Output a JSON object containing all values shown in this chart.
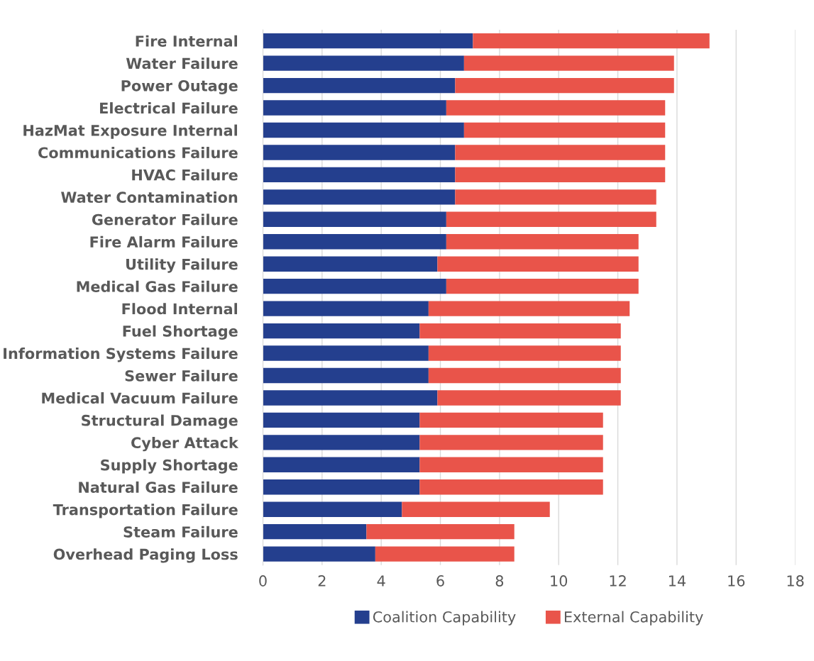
{
  "chart_data": {
    "type": "bar",
    "orientation": "horizontal",
    "stacked": true,
    "categories": [
      "Fire Internal",
      "Water Failure",
      "Power Outage",
      "Electrical Failure",
      "HazMat Exposure Internal",
      "Communications Failure",
      "HVAC Failure",
      "Water Contamination",
      "Generator Failure",
      "Fire Alarm Failure",
      "Utility Failure",
      "Medical Gas Failure",
      "Flood Internal",
      "Fuel Shortage",
      "Information Systems Failure",
      "Sewer Failure",
      "Medical Vacuum Failure",
      "Structural Damage",
      "Cyber Attack",
      "Supply Shortage",
      "Natural Gas Failure",
      "Transportation Failure",
      "Steam Failure",
      "Overhead Paging Loss"
    ],
    "series": [
      {
        "name": "Coalition Capability",
        "color": "#243f8e",
        "values": [
          7.1,
          6.8,
          6.5,
          6.2,
          6.8,
          6.5,
          6.5,
          6.5,
          6.2,
          6.2,
          5.9,
          6.2,
          5.6,
          5.3,
          5.6,
          5.6,
          5.9,
          5.3,
          5.3,
          5.3,
          5.3,
          4.7,
          3.5,
          3.8
        ]
      },
      {
        "name": "External Capability",
        "color": "#e9544a",
        "values": [
          8.0,
          7.1,
          7.4,
          7.4,
          6.8,
          7.1,
          7.1,
          6.8,
          7.1,
          6.5,
          6.8,
          6.5,
          6.8,
          6.8,
          6.5,
          6.5,
          6.2,
          6.2,
          6.2,
          6.2,
          6.2,
          5.0,
          5.0,
          4.7
        ]
      }
    ],
    "xlim": [
      0,
      18
    ],
    "xticks": [
      0,
      2,
      4,
      6,
      8,
      10,
      12,
      14,
      16,
      18
    ],
    "grid": "x",
    "legend": "bottom"
  }
}
